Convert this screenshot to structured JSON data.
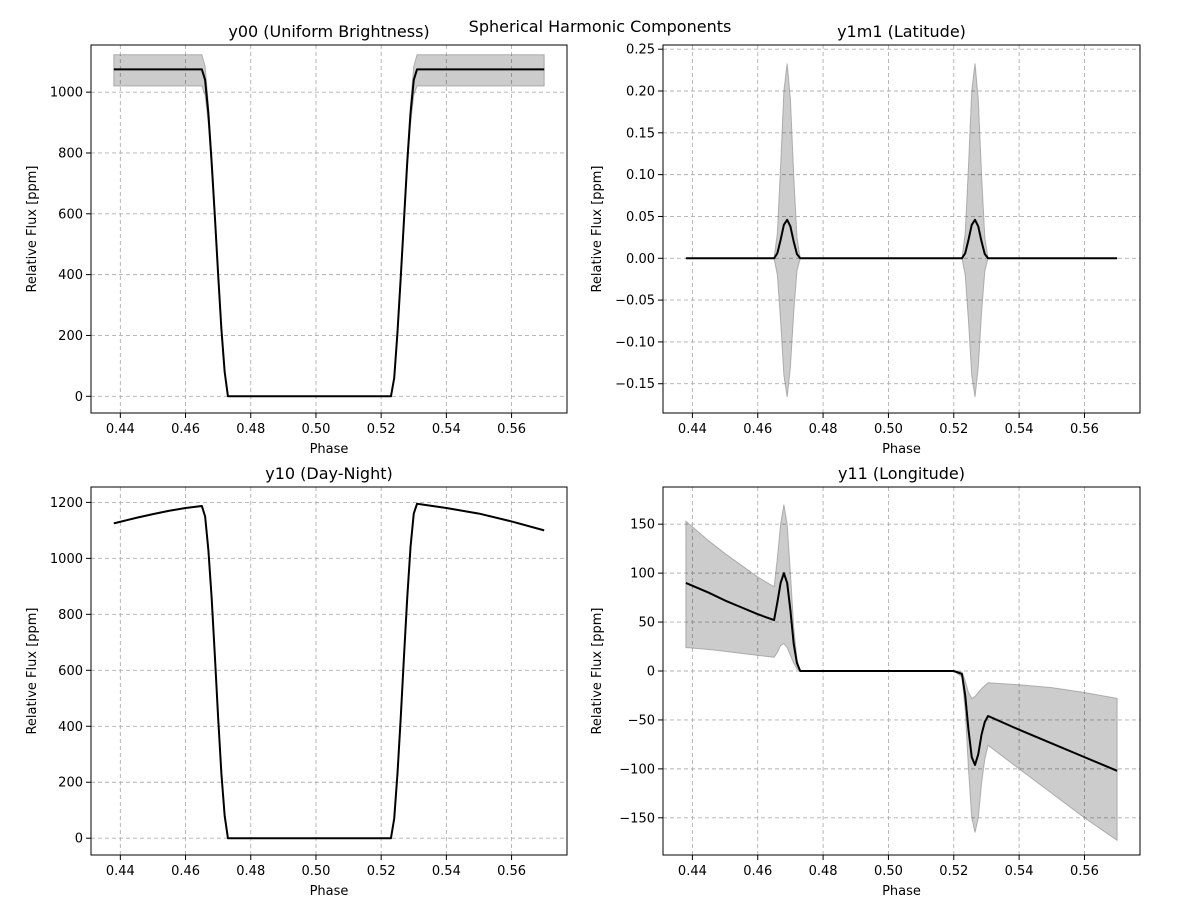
{
  "figure": {
    "suptitle": "Spherical Harmonic Components"
  },
  "chart_data": [
    {
      "type": "line",
      "title": "y00 (Uniform Brightness)",
      "xlabel": "Phase",
      "ylabel": "Relative Flux [ppm]",
      "xlim": [
        0.431,
        0.577
      ],
      "ylim": [
        -55,
        1155
      ],
      "xticks": [
        0.44,
        0.46,
        0.48,
        0.5,
        0.52,
        0.54,
        0.56
      ],
      "yticks": [
        0,
        200,
        400,
        600,
        800,
        1000
      ],
      "grid": true,
      "series": [
        {
          "x": [
            0.438,
            0.45,
            0.46,
            0.465,
            0.466,
            0.467,
            0.468,
            0.469,
            0.47,
            0.471,
            0.472,
            0.473,
            0.48,
            0.49,
            0.5,
            0.51,
            0.52,
            0.523,
            0.524,
            0.525,
            0.526,
            0.527,
            0.528,
            0.529,
            0.53,
            0.531,
            0.54,
            0.55,
            0.56,
            0.57
          ],
          "y": [
            1075,
            1075,
            1075,
            1075,
            1040,
            930,
            770,
            590,
            400,
            220,
            80,
            0,
            0,
            0,
            0,
            0,
            0,
            0,
            60,
            210,
            390,
            580,
            770,
            930,
            1040,
            1075,
            1075,
            1075,
            1075,
            1075
          ],
          "band_upper": [
            1123,
            1123,
            1123,
            1123,
            1085,
            960,
            790,
            605,
            410,
            225,
            82,
            0,
            0,
            0,
            0,
            0,
            0,
            0,
            62,
            215,
            400,
            595,
            790,
            960,
            1085,
            1123,
            1123,
            1123,
            1123,
            1123
          ],
          "band_lower": [
            1020,
            1020,
            1020,
            1020,
            990,
            895,
            745,
            575,
            390,
            215,
            78,
            0,
            0,
            0,
            0,
            0,
            0,
            0,
            58,
            205,
            380,
            565,
            750,
            895,
            990,
            1020,
            1020,
            1020,
            1020,
            1020
          ]
        }
      ]
    },
    {
      "type": "line",
      "title": "y1m1 (Latitude)",
      "xlabel": "Phase",
      "ylabel": "Relative Flux [ppm]",
      "xlim": [
        0.431,
        0.577
      ],
      "ylim": [
        -0.185,
        0.255
      ],
      "xticks": [
        0.44,
        0.46,
        0.48,
        0.5,
        0.52,
        0.54,
        0.56
      ],
      "yticks": [
        -0.15,
        -0.1,
        -0.05,
        0.0,
        0.05,
        0.1,
        0.15,
        0.2,
        0.25
      ],
      "tick_labels_y": [
        "−0.15",
        "−0.10",
        "−0.05",
        "0.00",
        "0.05",
        "0.10",
        "0.15",
        "0.20",
        "0.25"
      ],
      "grid": true,
      "series": [
        {
          "x": [
            0.438,
            0.45,
            0.46,
            0.465,
            0.466,
            0.467,
            0.468,
            0.469,
            0.47,
            0.471,
            0.472,
            0.473,
            0.48,
            0.49,
            0.5,
            0.51,
            0.52,
            0.5225,
            0.5235,
            0.5245,
            0.5255,
            0.5265,
            0.5275,
            0.5285,
            0.5295,
            0.5305,
            0.54,
            0.55,
            0.56,
            0.57
          ],
          "y": [
            0,
            0,
            0,
            0,
            0.006,
            0.022,
            0.04,
            0.046,
            0.038,
            0.02,
            0.005,
            0,
            0,
            0,
            0,
            0,
            0,
            0,
            0.006,
            0.022,
            0.04,
            0.046,
            0.038,
            0.02,
            0.005,
            0,
            0,
            0,
            0,
            0
          ],
          "band_upper": [
            0,
            0,
            0,
            0,
            0.03,
            0.11,
            0.2,
            0.233,
            0.19,
            0.1,
            0.025,
            0,
            0,
            0,
            0,
            0,
            0,
            0,
            0.03,
            0.11,
            0.2,
            0.233,
            0.19,
            0.1,
            0.025,
            0,
            0,
            0,
            0,
            0
          ],
          "band_lower": [
            0,
            0,
            0,
            0,
            -0.02,
            -0.075,
            -0.14,
            -0.166,
            -0.13,
            -0.065,
            -0.015,
            0,
            0,
            0,
            0,
            0,
            0,
            0,
            -0.02,
            -0.075,
            -0.14,
            -0.166,
            -0.13,
            -0.065,
            -0.015,
            0,
            0,
            0,
            0,
            0
          ]
        }
      ]
    },
    {
      "type": "line",
      "title": "y10 (Day-Night)",
      "xlabel": "Phase",
      "ylabel": "Relative Flux [ppm]",
      "xlim": [
        0.431,
        0.577
      ],
      "ylim": [
        -60,
        1255
      ],
      "xticks": [
        0.44,
        0.46,
        0.48,
        0.5,
        0.52,
        0.54,
        0.56
      ],
      "yticks": [
        0,
        200,
        400,
        600,
        800,
        1000,
        1200
      ],
      "grid": true,
      "series": [
        {
          "x": [
            0.438,
            0.445,
            0.45,
            0.455,
            0.46,
            0.465,
            0.466,
            0.467,
            0.468,
            0.469,
            0.47,
            0.471,
            0.472,
            0.473,
            0.48,
            0.49,
            0.5,
            0.51,
            0.52,
            0.523,
            0.524,
            0.525,
            0.526,
            0.527,
            0.528,
            0.529,
            0.53,
            0.531,
            0.54,
            0.55,
            0.56,
            0.57
          ],
          "y": [
            1125,
            1145,
            1158,
            1170,
            1180,
            1187,
            1150,
            1030,
            860,
            650,
            430,
            230,
            80,
            0,
            0,
            0,
            0,
            0,
            0,
            0,
            70,
            230,
            430,
            650,
            860,
            1040,
            1160,
            1195,
            1180,
            1160,
            1132,
            1100
          ]
        }
      ]
    },
    {
      "type": "line",
      "title": "y11 (Longitude)",
      "xlabel": "Phase",
      "ylabel": "Relative Flux [ppm]",
      "xlim": [
        0.431,
        0.577
      ],
      "ylim": [
        -188,
        188
      ],
      "xticks": [
        0.44,
        0.46,
        0.48,
        0.5,
        0.52,
        0.54,
        0.56
      ],
      "yticks": [
        -150,
        -100,
        -50,
        0,
        50,
        100,
        150
      ],
      "tick_labels_y": [
        "−150",
        "−100",
        "−50",
        "0",
        "50",
        "100",
        "150"
      ],
      "grid": true,
      "series": [
        {
          "x": [
            0.438,
            0.445,
            0.45,
            0.455,
            0.46,
            0.465,
            0.466,
            0.467,
            0.468,
            0.469,
            0.47,
            0.471,
            0.472,
            0.473,
            0.48,
            0.49,
            0.5,
            0.51,
            0.52,
            0.5225,
            0.5235,
            0.5245,
            0.5255,
            0.5265,
            0.5275,
            0.5285,
            0.5295,
            0.5305,
            0.54,
            0.55,
            0.56,
            0.57
          ],
          "y": [
            90,
            80,
            72,
            65,
            58,
            52,
            70,
            90,
            100,
            90,
            62,
            28,
            8,
            0,
            0,
            0,
            0,
            0,
            0,
            -3,
            -25,
            -60,
            -88,
            -96,
            -85,
            -65,
            -52,
            -46,
            -60,
            -74,
            -88,
            -102
          ],
          "band_upper": [
            153,
            133,
            120,
            108,
            96,
            86,
            115,
            150,
            170,
            150,
            100,
            45,
            12,
            0,
            0,
            0,
            0,
            0,
            0,
            -1,
            -10,
            -22,
            -28,
            -26,
            -22,
            -18,
            -15,
            -12,
            -14,
            -17,
            -22,
            -28
          ],
          "band_lower": [
            24,
            22,
            20,
            18,
            16,
            14,
            19,
            26,
            28,
            24,
            16,
            8,
            2,
            0,
            0,
            0,
            0,
            0,
            0,
            -6,
            -40,
            -100,
            -150,
            -165,
            -150,
            -115,
            -90,
            -76,
            -100,
            -125,
            -150,
            -173
          ]
        }
      ]
    }
  ]
}
